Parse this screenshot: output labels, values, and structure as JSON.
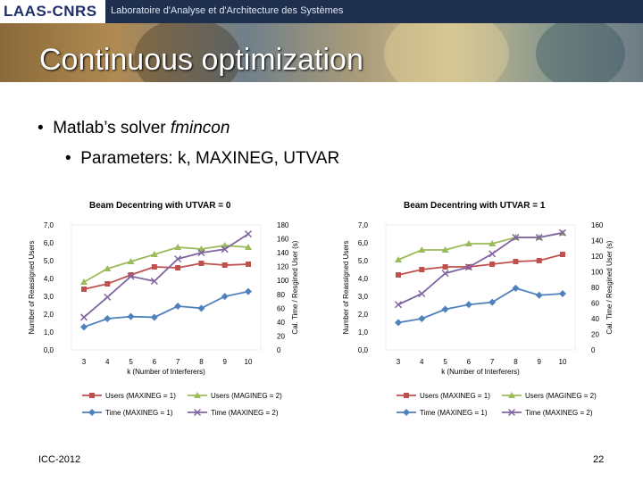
{
  "header": {
    "logo_text": "LAAS-CNRS",
    "lab_name": "Laboratoire d'Analyse et d'Architecture des Systèmes"
  },
  "slide": {
    "title": "Continuous optimization",
    "bullet1_prefix": "Matlab’s solver ",
    "bullet1_em": "fmincon",
    "bullet2": "Parameters: k, MAXINEG, UTVAR",
    "footer_left": "ICC-2012",
    "page_number": "22"
  },
  "colors": {
    "users1": "#c0504d",
    "users2": "#9bbb59",
    "time1": "#4f81bd",
    "time2": "#8064a2"
  },
  "chart_data": [
    {
      "type": "line",
      "title": "Beam Decentring with UTVAR = 0",
      "xlabel": "k (Number of Interferers)",
      "ylabel": "Number of Reassigned Users",
      "y2label": "Cal. Time / Resgined User (s)",
      "x": [
        3,
        4,
        5,
        6,
        7,
        8,
        9,
        10
      ],
      "x_tick_labels": [
        "3",
        "4",
        "5",
        "6",
        "7",
        "8",
        "9",
        "10"
      ],
      "ylim": [
        0,
        7
      ],
      "y_ticks": [
        "0,0",
        "1,0",
        "2,0",
        "3,0",
        "4,0",
        "5,0",
        "6,0",
        "7,0"
      ],
      "y2lim": [
        0,
        180
      ],
      "y2_ticks": [
        "0",
        "20",
        "40",
        "60",
        "80",
        "100",
        "120",
        "140",
        "160",
        "180"
      ],
      "series": [
        {
          "name": "Users (MAXINEG = 1)",
          "axis": "left",
          "color_key": "users1",
          "marker": "square",
          "values": [
            3.4,
            3.7,
            4.2,
            4.65,
            4.6,
            4.85,
            4.75,
            4.8
          ]
        },
        {
          "name": "Users (MAGINEG = 2)",
          "axis": "left",
          "color_key": "users2",
          "marker": "triangle",
          "values": [
            3.8,
            4.55,
            4.95,
            5.35,
            5.75,
            5.65,
            5.85,
            5.75
          ]
        },
        {
          "name": "Time (MAXINEG = 1)",
          "axis": "right",
          "color_key": "time1",
          "marker": "diamond",
          "values": [
            33,
            45,
            48,
            47,
            63,
            60,
            77,
            84
          ]
        },
        {
          "name": "Time (MAXINEG = 2)",
          "axis": "right",
          "color_key": "time2",
          "marker": "x",
          "values": [
            47,
            76,
            106,
            99,
            131,
            140,
            145,
            167
          ]
        }
      ]
    },
    {
      "type": "line",
      "title": "Beam Decentring with UTVAR = 1",
      "xlabel": "k (Number of Interferers)",
      "ylabel": "Number of Reassigned Users",
      "y2label": "Cal. Time / Resgined User (s)",
      "x": [
        3,
        4,
        5,
        6,
        7,
        8,
        9,
        10
      ],
      "x_tick_labels": [
        "3",
        "4",
        "5",
        "6",
        "7",
        "8",
        "9",
        "10"
      ],
      "ylim": [
        0,
        7
      ],
      "y_ticks": [
        "0,0",
        "1,0",
        "2,0",
        "3,0",
        "4,0",
        "5,0",
        "6,0",
        "7,0"
      ],
      "y2lim": [
        0,
        160
      ],
      "y2_ticks": [
        "0",
        "20",
        "40",
        "60",
        "80",
        "100",
        "120",
        "140",
        "160"
      ],
      "series": [
        {
          "name": "Users (MAXINEG = 1)",
          "axis": "left",
          "color_key": "users1",
          "marker": "square",
          "values": [
            4.2,
            4.5,
            4.65,
            4.65,
            4.8,
            4.95,
            5.0,
            5.35
          ]
        },
        {
          "name": "Users (MAGINEG = 2)",
          "axis": "left",
          "color_key": "users2",
          "marker": "triangle",
          "values": [
            5.05,
            5.6,
            5.6,
            5.95,
            5.95,
            6.3,
            6.3,
            6.55
          ]
        },
        {
          "name": "Time (MAXINEG = 1)",
          "axis": "right",
          "color_key": "time1",
          "marker": "diamond",
          "values": [
            35,
            40,
            52,
            58,
            61,
            79,
            70,
            72
          ]
        },
        {
          "name": "Time (MAXINEG = 2)",
          "axis": "right",
          "color_key": "time2",
          "marker": "x",
          "values": [
            58,
            72,
            98,
            106,
            123,
            144,
            144,
            150
          ]
        }
      ]
    }
  ]
}
